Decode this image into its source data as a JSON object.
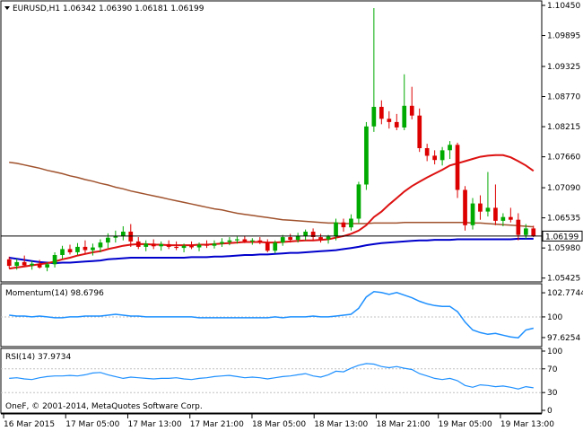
{
  "colors": {
    "bull": "#00aa00",
    "bear": "#dd0000",
    "sma_fast": "#dd1111",
    "sma_mid": "#0000cc",
    "sma_slow": "#a0522d",
    "momentum": "#1e90ff",
    "rsi": "#1e90ff",
    "price_line": "#000000",
    "current_tag_bg": "#ffffff"
  },
  "chart_data": [
    {
      "type": "candlestick",
      "symbol": "EURUSD,H1",
      "header": "EURUSD,H1  1.06342 1.06390 1.06181 1.06199",
      "ohlc_latest": {
        "open": 1.06342,
        "high": 1.0639,
        "low": 1.06181,
        "close": 1.06199
      },
      "current_price": "1.06199",
      "ylim": [
        1.0542,
        1.1045
      ],
      "y_ticks": [
        "1.10450",
        "1.09895",
        "1.09325",
        "1.08770",
        "1.08215",
        "1.07660",
        "1.07090",
        "1.06535",
        "1.05980",
        "1.05425"
      ],
      "x_ticks": [
        "16 Mar 2015",
        "17 Mar 05:00",
        "17 Mar 13:00",
        "17 Mar 21:00",
        "18 Mar 05:00",
        "18 Mar 13:00",
        "18 Mar 21:00",
        "19 Mar 05:00",
        "19 Mar 13:00"
      ],
      "candles": [
        [
          1.0577,
          1.0582,
          1.056,
          1.0565
        ],
        [
          1.0565,
          1.0578,
          1.0558,
          1.0572
        ],
        [
          1.0572,
          1.0584,
          1.0565,
          1.0566
        ],
        [
          1.0566,
          1.0574,
          1.0558,
          1.0569
        ],
        [
          1.0569,
          1.0576,
          1.056,
          1.0562
        ],
        [
          1.0562,
          1.0571,
          1.0555,
          1.0568
        ],
        [
          1.0568,
          1.059,
          1.0562,
          1.0585
        ],
        [
          1.0585,
          1.0602,
          1.0578,
          1.0596
        ],
        [
          1.0596,
          1.0604,
          1.0586,
          1.059
        ],
        [
          1.059,
          1.0607,
          1.0585,
          1.06
        ],
        [
          1.06,
          1.0612,
          1.0588,
          1.0594
        ],
        [
          1.0594,
          1.0606,
          1.0584,
          1.0599
        ],
        [
          1.0599,
          1.0614,
          1.059,
          1.0608
        ],
        [
          1.0608,
          1.0625,
          1.0598,
          1.0617
        ],
        [
          1.0617,
          1.063,
          1.0608,
          1.062
        ],
        [
          1.062,
          1.0638,
          1.0612,
          1.0628
        ],
        [
          1.0628,
          1.0642,
          1.06,
          1.061
        ],
        [
          1.061,
          1.0618,
          1.0596,
          1.06
        ],
        [
          1.06,
          1.0612,
          1.0592,
          1.0606
        ],
        [
          1.0606,
          1.0614,
          1.0596,
          1.0601
        ],
        [
          1.0601,
          1.061,
          1.0593,
          1.0605
        ],
        [
          1.0605,
          1.0612,
          1.0596,
          1.06
        ],
        [
          1.06,
          1.061,
          1.0594,
          1.0598
        ],
        [
          1.0598,
          1.0606,
          1.059,
          1.0602
        ],
        [
          1.0602,
          1.061,
          1.0596,
          1.0599
        ],
        [
          1.0599,
          1.0608,
          1.0592,
          1.0604
        ],
        [
          1.0604,
          1.0612,
          1.0598,
          1.0602
        ],
        [
          1.0602,
          1.0612,
          1.0597,
          1.0606
        ],
        [
          1.0606,
          1.0616,
          1.06,
          1.0609
        ],
        [
          1.0609,
          1.0618,
          1.0603,
          1.0612
        ],
        [
          1.0612,
          1.0619,
          1.0606,
          1.0614
        ],
        [
          1.0614,
          1.062,
          1.0607,
          1.061
        ],
        [
          1.061,
          1.0616,
          1.0604,
          1.0612
        ],
        [
          1.0612,
          1.0618,
          1.0605,
          1.0608
        ],
        [
          1.0608,
          1.0614,
          1.059,
          1.0593
        ],
        [
          1.0593,
          1.0612,
          1.0588,
          1.0608
        ],
        [
          1.0608,
          1.0622,
          1.0602,
          1.0618
        ],
        [
          1.0618,
          1.0624,
          1.0608,
          1.0613
        ],
        [
          1.0613,
          1.0626,
          1.0608,
          1.062
        ],
        [
          1.062,
          1.0632,
          1.0612,
          1.0628
        ],
        [
          1.0628,
          1.0634,
          1.0612,
          1.0618
        ],
        [
          1.0618,
          1.0624,
          1.0608,
          1.0614
        ],
        [
          1.0614,
          1.0622,
          1.0606,
          1.0619
        ],
        [
          1.0619,
          1.0652,
          1.0612,
          1.0645
        ],
        [
          1.0645,
          1.0652,
          1.0628,
          1.0636
        ],
        [
          1.0636,
          1.066,
          1.063,
          1.0652
        ],
        [
          1.0652,
          1.072,
          1.0644,
          1.0715
        ],
        [
          1.0715,
          1.083,
          1.0705,
          1.0822
        ],
        [
          1.0822,
          1.104,
          1.0812,
          1.0858
        ],
        [
          1.0858,
          1.087,
          1.0826,
          1.0836
        ],
        [
          1.0836,
          1.085,
          1.0818,
          1.083
        ],
        [
          1.083,
          1.0845,
          1.0815,
          1.082
        ],
        [
          1.082,
          1.0918,
          1.0815,
          1.086
        ],
        [
          1.086,
          1.0895,
          1.0835,
          1.0842
        ],
        [
          1.0842,
          1.0855,
          1.0775,
          1.0782
        ],
        [
          1.0782,
          1.079,
          1.0758,
          1.0768
        ],
        [
          1.0768,
          1.0778,
          1.0752,
          1.076
        ],
        [
          1.076,
          1.0784,
          1.075,
          1.0778
        ],
        [
          1.0778,
          1.0795,
          1.0762,
          1.0788
        ],
        [
          1.0788,
          1.0792,
          1.069,
          1.0705
        ],
        [
          1.0705,
          1.0712,
          1.063,
          1.064
        ],
        [
          1.064,
          1.069,
          1.0632,
          1.068
        ],
        [
          1.068,
          1.0695,
          1.065,
          1.0665
        ],
        [
          1.0665,
          1.0738,
          1.0656,
          1.0672
        ],
        [
          1.0672,
          1.0715,
          1.064,
          1.0648
        ],
        [
          1.0648,
          1.0662,
          1.0638,
          1.0655
        ],
        [
          1.0655,
          1.0672,
          1.0645,
          1.065
        ],
        [
          1.065,
          1.0662,
          1.0612,
          1.0622
        ],
        [
          1.0622,
          1.0642,
          1.0615,
          1.0634
        ],
        [
          1.0634,
          1.0639,
          1.0618,
          1.062
        ]
      ],
      "sma_fast": [
        1.056,
        1.0562,
        1.0564,
        1.0566,
        1.0568,
        1.057,
        1.0573,
        1.0577,
        1.058,
        1.0584,
        1.0587,
        1.059,
        1.0592,
        1.0596,
        1.0599,
        1.0602,
        1.0604,
        1.0605,
        1.0605,
        1.0604,
        1.0604,
        1.0603,
        1.0603,
        1.0603,
        1.0603,
        1.0604,
        1.0604,
        1.0605,
        1.0606,
        1.0607,
        1.0608,
        1.0609,
        1.0609,
        1.0609,
        1.0608,
        1.0608,
        1.0609,
        1.061,
        1.0611,
        1.0612,
        1.0612,
        1.0613,
        1.0614,
        1.0617,
        1.062,
        1.0624,
        1.063,
        1.064,
        1.0655,
        1.0665,
        1.0678,
        1.069,
        1.0702,
        1.0712,
        1.072,
        1.0728,
        1.0735,
        1.0742,
        1.075,
        1.0754,
        1.0758,
        1.0762,
        1.0766,
        1.0768,
        1.0769,
        1.0769,
        1.0765,
        1.0758,
        1.075,
        1.074
      ],
      "sma_mid": [
        1.058,
        1.0578,
        1.0576,
        1.0574,
        1.0572,
        1.0571,
        1.057,
        1.0571,
        1.0571,
        1.0572,
        1.0573,
        1.0574,
        1.0575,
        1.0577,
        1.0578,
        1.0579,
        1.058,
        1.058,
        1.058,
        1.058,
        1.058,
        1.058,
        1.058,
        1.058,
        1.0581,
        1.0581,
        1.0581,
        1.0582,
        1.0582,
        1.0583,
        1.0584,
        1.0585,
        1.0585,
        1.0586,
        1.0586,
        1.0587,
        1.0588,
        1.0589,
        1.0589,
        1.059,
        1.0591,
        1.0592,
        1.0593,
        1.0594,
        1.0596,
        1.0598,
        1.06,
        1.0603,
        1.0605,
        1.0607,
        1.0608,
        1.0609,
        1.061,
        1.0611,
        1.0612,
        1.0612,
        1.0613,
        1.0613,
        1.0613,
        1.0614,
        1.0614,
        1.0614,
        1.0614,
        1.0614,
        1.0614,
        1.0614,
        1.0614,
        1.0615,
        1.0615,
        1.0615
      ],
      "sma_slow": [
        1.0756,
        1.0754,
        1.0751,
        1.0748,
        1.0745,
        1.0741,
        1.0738,
        1.0735,
        1.0731,
        1.0728,
        1.0724,
        1.0721,
        1.0717,
        1.0714,
        1.071,
        1.0707,
        1.0703,
        1.07,
        1.0697,
        1.0694,
        1.0691,
        1.0688,
        1.0685,
        1.0682,
        1.0679,
        1.0676,
        1.0673,
        1.067,
        1.0668,
        1.0665,
        1.0662,
        1.066,
        1.0658,
        1.0656,
        1.0654,
        1.0652,
        1.065,
        1.0649,
        1.0648,
        1.0647,
        1.0646,
        1.0645,
        1.0644,
        1.0644,
        1.0643,
        1.0643,
        1.0643,
        1.0643,
        1.0644,
        1.0644,
        1.0644,
        1.0644,
        1.0645,
        1.0645,
        1.0645,
        1.0645,
        1.0645,
        1.0645,
        1.0645,
        1.0645,
        1.0645,
        1.0644,
        1.0644,
        1.0643,
        1.0642,
        1.0641,
        1.064,
        1.0639,
        1.0638,
        1.0637
      ]
    },
    {
      "type": "line",
      "name": "Momentum(14) 98.6796",
      "title": "Momentum(14) 98.6796",
      "ylim": [
        97.0,
        103.4
      ],
      "y_ticks": [
        "102.7744",
        "100",
        "97.6254"
      ],
      "reference_level": 100,
      "values": [
        100.2,
        100.1,
        100.1,
        100.0,
        100.1,
        100.0,
        99.9,
        99.9,
        100.0,
        100.0,
        100.1,
        100.1,
        100.1,
        100.2,
        100.3,
        100.2,
        100.1,
        100.1,
        100.0,
        100.0,
        100.0,
        100.0,
        100.0,
        100.0,
        100.0,
        99.9,
        99.9,
        99.9,
        99.9,
        99.9,
        99.9,
        99.9,
        99.9,
        99.9,
        99.9,
        100.0,
        99.9,
        100.0,
        100.0,
        100.0,
        100.1,
        100.0,
        100.0,
        100.1,
        100.2,
        100.3,
        101.0,
        102.3,
        102.9,
        102.8,
        102.6,
        102.8,
        102.5,
        102.2,
        101.8,
        101.5,
        101.3,
        101.2,
        101.2,
        100.6,
        99.4,
        98.5,
        98.2,
        98.0,
        98.1,
        97.9,
        97.7,
        97.6,
        98.5,
        98.7
      ]
    },
    {
      "type": "line",
      "name": "RSI(14) 37.9734",
      "title": "RSI(14) 37.9734",
      "ylim": [
        0,
        100
      ],
      "y_ticks": [
        "100",
        "70",
        "30",
        "0"
      ],
      "levels": [
        70,
        30
      ],
      "values": [
        54,
        55,
        53,
        52,
        55,
        57,
        58,
        58,
        59,
        58,
        60,
        63,
        64,
        60,
        57,
        54,
        56,
        55,
        54,
        53,
        54,
        54,
        55,
        53,
        52,
        54,
        55,
        57,
        58,
        59,
        57,
        55,
        56,
        55,
        53,
        55,
        57,
        58,
        60,
        62,
        58,
        56,
        60,
        66,
        65,
        71,
        76,
        79,
        78,
        74,
        72,
        74,
        71,
        69,
        62,
        58,
        54,
        52,
        54,
        50,
        42,
        39,
        43,
        42,
        40,
        41,
        39,
        36,
        40,
        38
      ]
    }
  ],
  "footer_text": "OneF, © 2001-2014, MetaQuotes Software Corp."
}
